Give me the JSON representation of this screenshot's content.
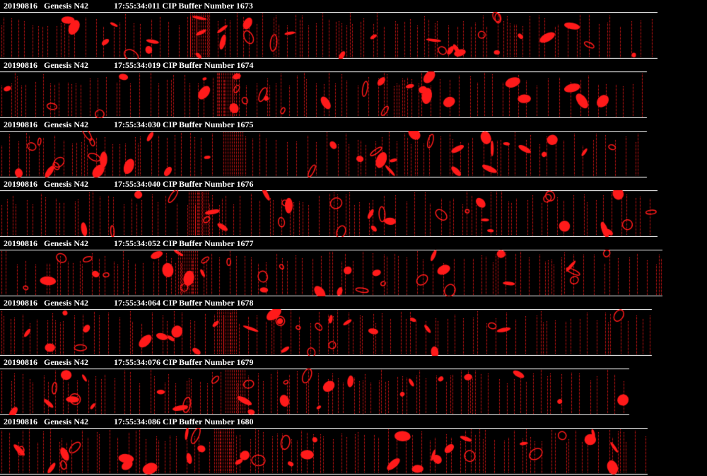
{
  "buffers": [
    {
      "date": "20190816",
      "probe": "Genesis N42",
      "info": "17:55:34:011 CIP Buffer Number 1673",
      "end_fraction": 0.93
    },
    {
      "date": "20190816",
      "probe": "Genesis N42",
      "info": "17:55:34:019 CIP Buffer Number 1674",
      "end_fraction": 0.915
    },
    {
      "date": "20190816",
      "probe": "Genesis N42",
      "info": "17:55:34:030 CIP Buffer Number 1675",
      "end_fraction": 0.915
    },
    {
      "date": "20190816",
      "probe": "Genesis N42",
      "info": "17:55:34:040 CIP Buffer Number 1676",
      "end_fraction": 0.93
    },
    {
      "date": "20190816",
      "probe": "Genesis N42",
      "info": "17:55:34:052 CIP Buffer Number 1677",
      "end_fraction": 0.937
    },
    {
      "date": "20190816",
      "probe": "Genesis N42",
      "info": "17:55:34:064 CIP Buffer Number 1678",
      "end_fraction": 0.922
    },
    {
      "date": "20190816",
      "probe": "Genesis N42",
      "info": "17:55:34:076 CIP Buffer Number 1679",
      "end_fraction": 0.89
    },
    {
      "date": "20190816",
      "probe": "Genesis N42",
      "info": "17:55:34:086 CIP Buffer Number 1680",
      "end_fraction": 0.916
    }
  ],
  "colors": {
    "background": "#000000",
    "particle": "#ff1a1a",
    "text": "#ffffff",
    "rule": "#ffffff"
  }
}
